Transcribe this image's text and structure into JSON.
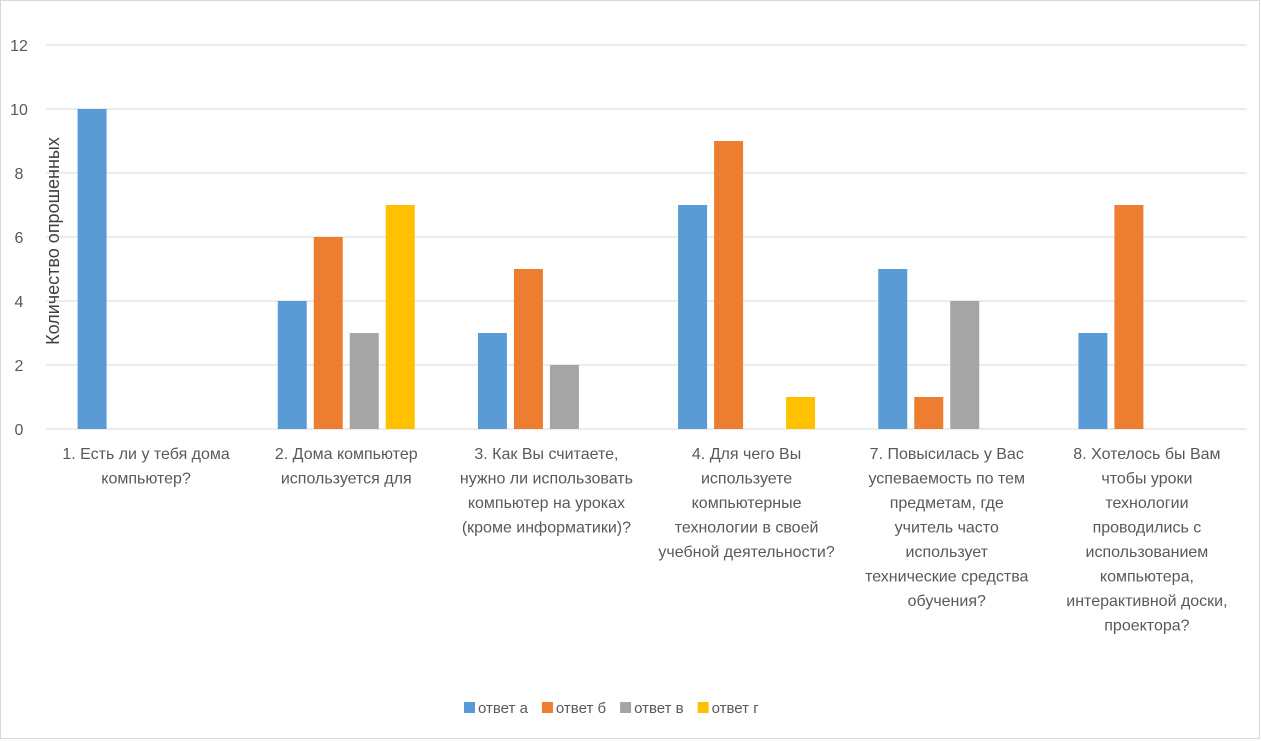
{
  "chart_data": {
    "type": "bar",
    "title": "",
    "xlabel": "",
    "ylabel": "Количество опрошенных",
    "ylim": [
      0,
      12
    ],
    "yticks": [
      0,
      2,
      4,
      6,
      8,
      10,
      12
    ],
    "grid": true,
    "legend_position": "bottom",
    "categories": [
      [
        "1. Есть ли у тебя дома",
        "компьютер?"
      ],
      [
        "2. Дома компьютер",
        "используется для"
      ],
      [
        "3. Как Вы считаете,",
        "нужно ли использовать",
        "компьютер на уроках",
        "(кроме информатики)?"
      ],
      [
        "4. Для чего Вы",
        "используете",
        "компьютерные",
        "технологии в своей",
        "учебной деятельности?"
      ],
      [
        "7. Повысилась у Вас",
        "успеваемость по тем",
        "предметам, где",
        "учитель часто",
        "использует",
        "технические средства",
        "обучения?"
      ],
      [
        "8. Хотелось бы Вам",
        "чтобы уроки",
        "технологии",
        "проводились с",
        "использованием",
        "компьютера,",
        "интерактивной доски,",
        "проектора?"
      ]
    ],
    "series": [
      {
        "name": "ответ а",
        "color": "#5b9bd5",
        "values": [
          10,
          4,
          3,
          7,
          5,
          3
        ]
      },
      {
        "name": "ответ б",
        "color": "#ed7d31",
        "values": [
          0,
          6,
          5,
          9,
          1,
          7
        ]
      },
      {
        "name": "ответ в",
        "color": "#a5a5a5",
        "values": [
          0,
          3,
          2,
          0,
          4,
          0
        ]
      },
      {
        "name": "ответ г",
        "color": "#ffc000",
        "values": [
          0,
          7,
          0,
          1,
          0,
          0
        ]
      }
    ]
  }
}
